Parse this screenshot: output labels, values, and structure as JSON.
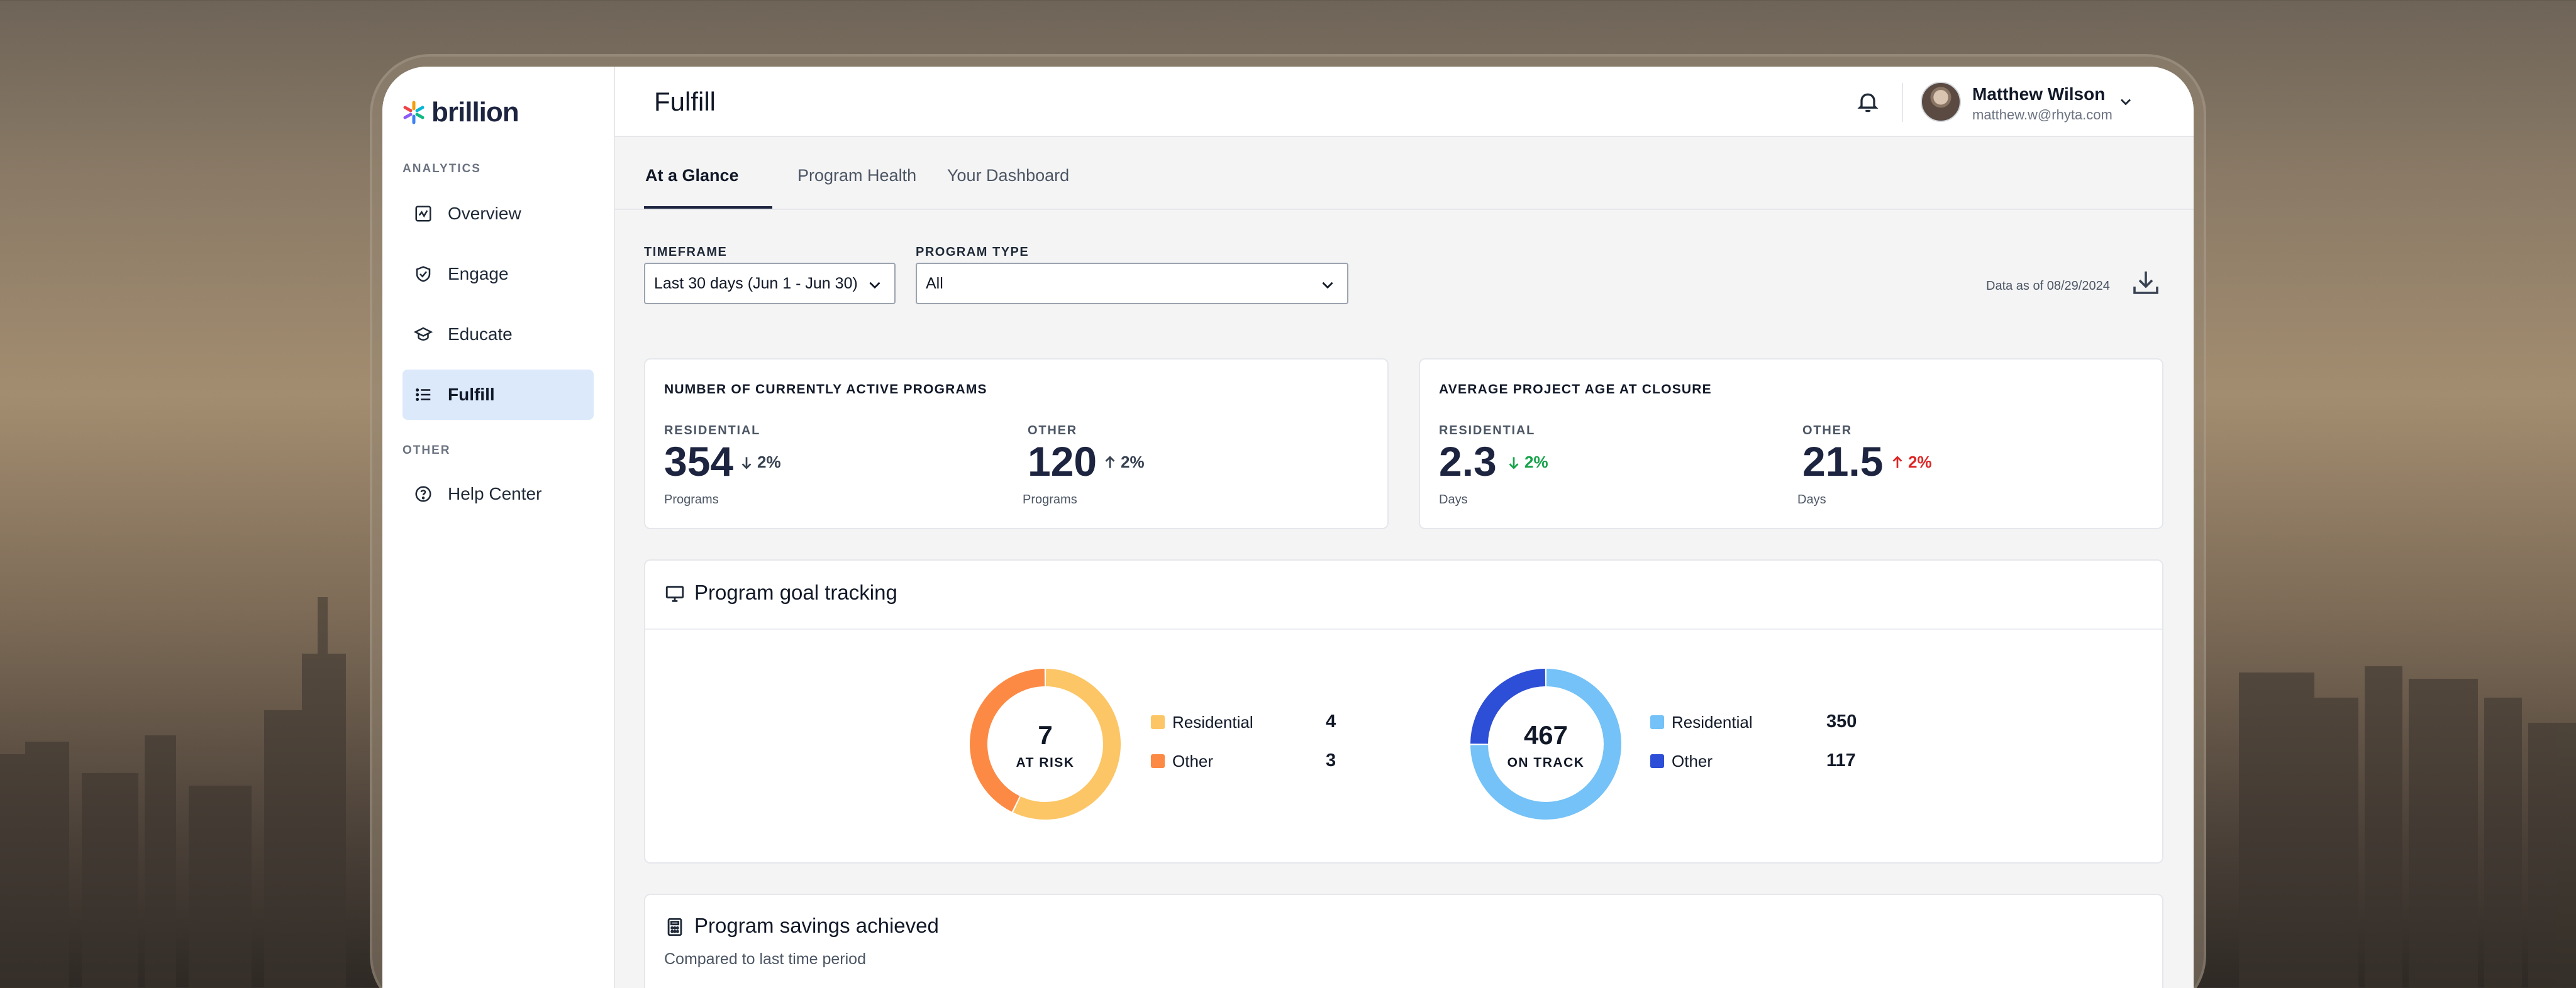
{
  "app": {
    "brand": "brillion",
    "page_title": "Fulfill"
  },
  "sidebar": {
    "sections": [
      {
        "label": "ANALYTICS"
      },
      {
        "label": "OTHER"
      }
    ],
    "items": [
      {
        "label": "Overview",
        "icon": "activity-chart-icon"
      },
      {
        "label": "Engage",
        "icon": "handshake-icon"
      },
      {
        "label": "Educate",
        "icon": "graduation-cap-icon"
      },
      {
        "label": "Fulfill",
        "icon": "checklist-icon",
        "active": true
      },
      {
        "label": "Help Center",
        "icon": "help-circle-icon"
      }
    ]
  },
  "header": {
    "user_name": "Matthew Wilson",
    "user_email": "matthew.w@rhyta.com"
  },
  "tabs": [
    {
      "label": "At a Glance",
      "active": true
    },
    {
      "label": "Program Health"
    },
    {
      "label": "Your Dashboard"
    }
  ],
  "filters": {
    "timeframe_label": "TIMEFRAME",
    "timeframe_value": "Last 30 days (Jun 1 - Jun 30)",
    "program_type_label": "PROGRAM TYPE",
    "program_type_value": "All",
    "data_as_of": "Data as of 08/29/2024"
  },
  "cards": {
    "active_programs": {
      "title": "NUMBER OF CURRENTLY ACTIVE PROGRAMS",
      "residential": {
        "label": "RESIDENTIAL",
        "value": "354",
        "change": "2%",
        "direction": "down",
        "unit": "Programs"
      },
      "other": {
        "label": "OTHER",
        "value": "120",
        "change": "2%",
        "direction": "up",
        "unit": "Programs"
      }
    },
    "project_age": {
      "title": "AVERAGE PROJECT AGE AT CLOSURE",
      "residential": {
        "label": "RESIDENTIAL",
        "value": "2.3",
        "change": "2%",
        "direction": "down",
        "unit": "Days"
      },
      "other": {
        "label": "OTHER",
        "value": "21.5",
        "change": "2%",
        "direction": "up",
        "unit": "Days"
      }
    }
  },
  "goal_tracking": {
    "title": "Program goal tracking",
    "at_risk": {
      "total": "7",
      "label": "AT RISK",
      "segments": [
        {
          "name": "Residential",
          "value": 4,
          "color": "#fcc666"
        },
        {
          "name": "Other",
          "value": 3,
          "color": "#fd8a44"
        }
      ]
    },
    "on_track": {
      "total": "467",
      "label": "ON TRACK",
      "segments": [
        {
          "name": "Residential",
          "value": 350,
          "color": "#74c2f7"
        },
        {
          "name": "Other",
          "value": 117,
          "color": "#2d4ed6"
        }
      ]
    }
  },
  "savings": {
    "title": "Program savings achieved",
    "subtitle": "Compared to last time period"
  },
  "colors": {
    "accent_navy": "#1d2440",
    "active_nav": "#dbe9fb",
    "positive": "#16a34a",
    "negative": "#dc2626"
  }
}
